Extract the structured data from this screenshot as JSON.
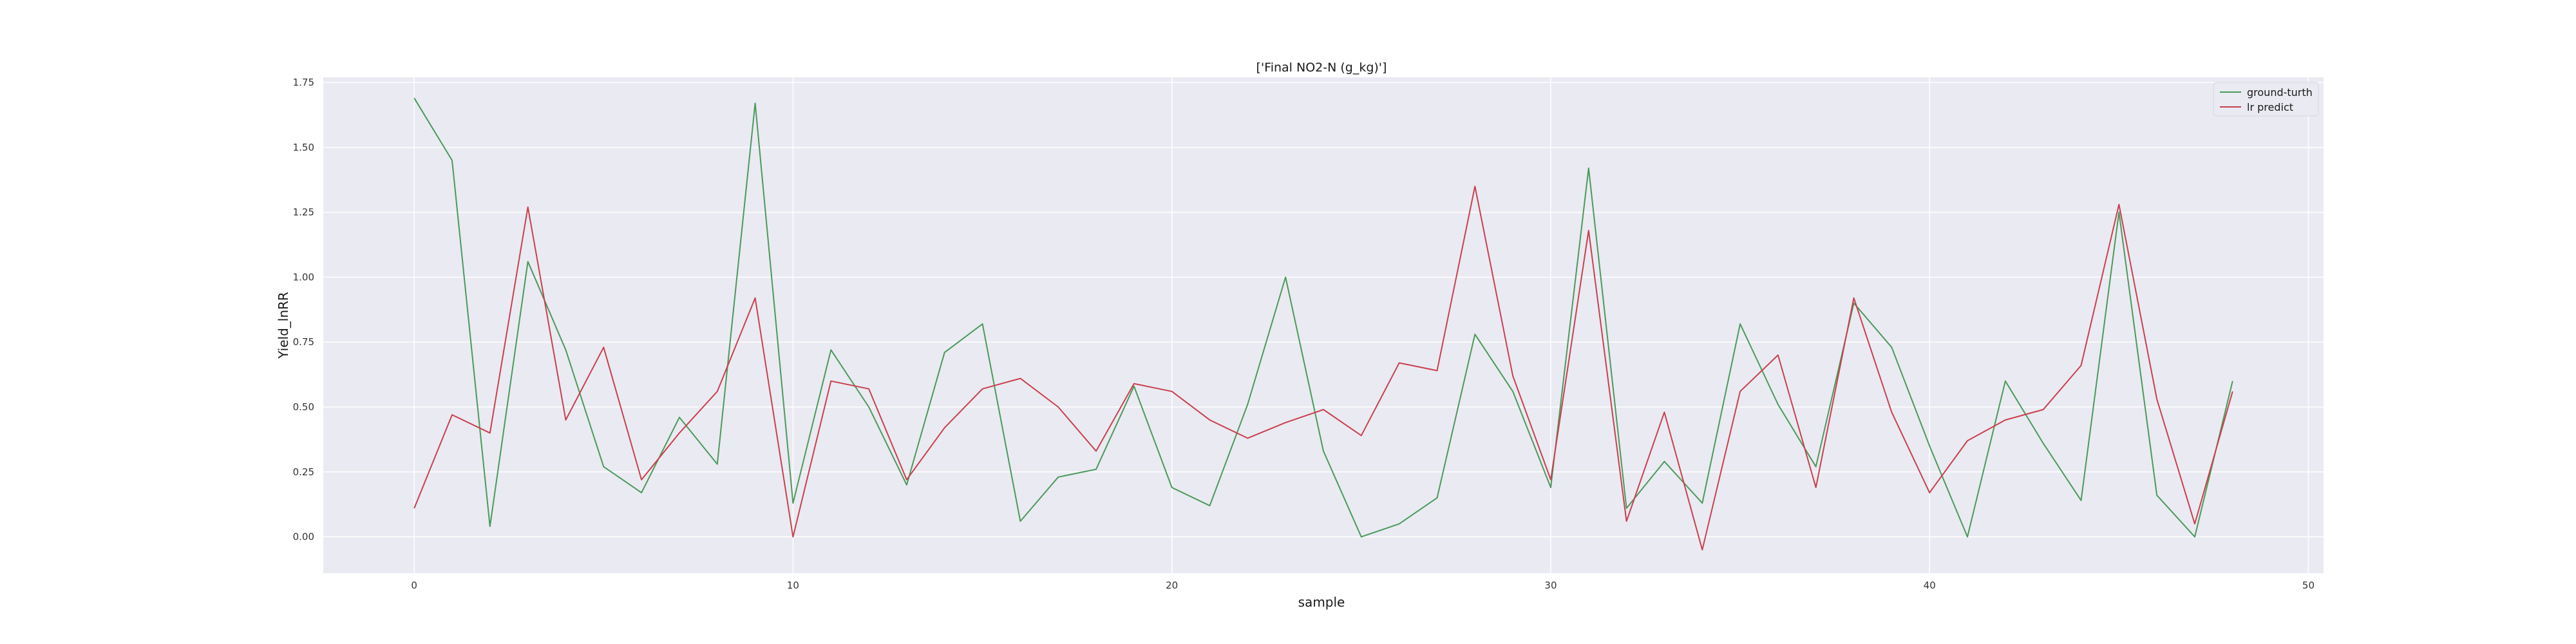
{
  "chart_data": {
    "type": "line",
    "title": "['Final NO2-N (g_kg)']",
    "xlabel": "sample",
    "ylabel": "Yield_lnRR",
    "xlim": [
      -2.4,
      50.4
    ],
    "ylim": [
      -0.14,
      1.77
    ],
    "x_ticks": [
      0,
      10,
      20,
      30,
      40,
      50
    ],
    "y_ticks": [
      0.0,
      0.25,
      0.5,
      0.75,
      1.0,
      1.25,
      1.5,
      1.75
    ],
    "x_tick_labels": [
      "0",
      "10",
      "20",
      "30",
      "40",
      "50"
    ],
    "y_tick_labels": [
      "0.00",
      "0.25",
      "0.50",
      "0.75",
      "1.00",
      "1.25",
      "1.50",
      "1.75"
    ],
    "grid": true,
    "legend_position": "top-right",
    "x": [
      0,
      1,
      2,
      3,
      4,
      5,
      6,
      7,
      8,
      9,
      10,
      11,
      12,
      13,
      14,
      15,
      16,
      17,
      18,
      19,
      20,
      21,
      22,
      23,
      24,
      25,
      26,
      27,
      28,
      29,
      30,
      31,
      32,
      33,
      34,
      35,
      36,
      37,
      38,
      39,
      40,
      41,
      42,
      43,
      44,
      45,
      46,
      47,
      48
    ],
    "series": [
      {
        "name": "ground-turth",
        "color": "#4a9a5a",
        "values": [
          1.69,
          1.45,
          0.04,
          1.06,
          0.72,
          0.27,
          0.17,
          0.46,
          0.28,
          1.67,
          0.13,
          0.72,
          0.5,
          0.2,
          0.71,
          0.82,
          0.06,
          0.23,
          0.26,
          0.58,
          0.19,
          0.12,
          0.51,
          1.0,
          0.33,
          0.0,
          0.05,
          0.15,
          0.78,
          0.56,
          0.19,
          1.42,
          0.11,
          0.29,
          0.13,
          0.82,
          0.51,
          0.27,
          0.9,
          0.73,
          0.35,
          0.0,
          0.6,
          0.36,
          0.14,
          1.25,
          0.16,
          0.0,
          0.6
        ]
      },
      {
        "name": "lr predict",
        "color": "#c8404d",
        "values": [
          0.11,
          0.47,
          0.4,
          1.27,
          0.45,
          0.73,
          0.22,
          0.4,
          0.56,
          0.92,
          0.0,
          0.6,
          0.57,
          0.22,
          0.42,
          0.57,
          0.61,
          0.5,
          0.33,
          0.59,
          0.56,
          0.45,
          0.38,
          0.44,
          0.49,
          0.39,
          0.67,
          0.64,
          1.35,
          0.62,
          0.22,
          1.18,
          0.06,
          0.48,
          -0.05,
          0.56,
          0.7,
          0.19,
          0.92,
          0.48,
          0.17,
          0.37,
          0.45,
          0.49,
          0.66,
          1.28,
          0.53,
          0.05,
          0.56
        ]
      }
    ],
    "colors": {
      "plot_background": "#eaeaf2",
      "grid": "#ffffff",
      "text": "#1a1a1a"
    }
  }
}
